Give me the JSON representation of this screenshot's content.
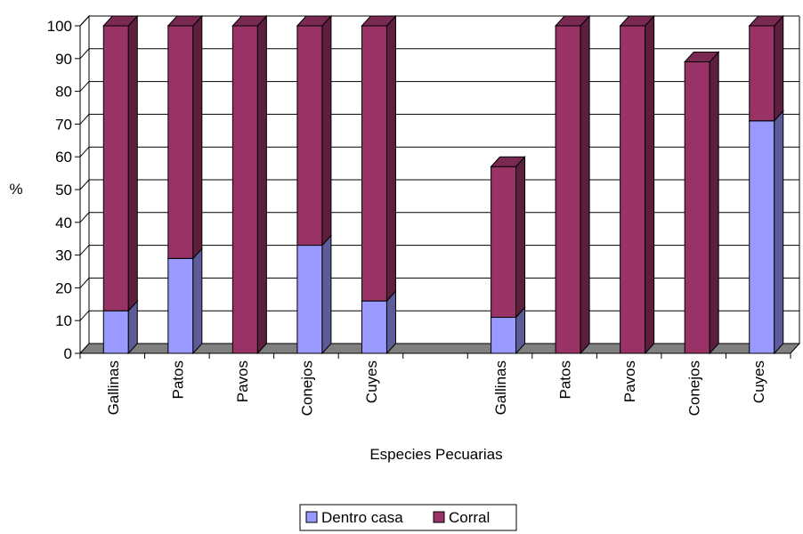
{
  "chart_data": {
    "type": "bar",
    "stacked": true,
    "three_d": true,
    "xlabel": "Especies Pecuarias",
    "ylabel": "%",
    "ylim": [
      0,
      100
    ],
    "y_ticks": [
      0,
      10,
      20,
      30,
      40,
      50,
      60,
      70,
      80,
      90,
      100
    ],
    "grid": true,
    "legend_position": "bottom",
    "groups": [
      {
        "categories": [
          "Gallinas",
          "Patos",
          "Pavos",
          "Conejos",
          "Cuyes"
        ]
      },
      {
        "categories": [
          "Gallinas",
          "Patos",
          "Pavos",
          "Conejos",
          "Cuyes"
        ]
      }
    ],
    "series": [
      {
        "name": "Dentro casa",
        "color": "#9999ff",
        "side_color": "#5c5c99",
        "top_color": "#7a7acc",
        "values": [
          [
            13,
            29,
            0,
            33,
            16
          ],
          [
            11,
            0,
            0,
            0,
            71
          ]
        ]
      },
      {
        "name": "Corral",
        "color": "#993366",
        "side_color": "#5c1f3d",
        "top_color": "#7a2952",
        "values": [
          [
            87,
            71,
            100,
            67,
            84
          ],
          [
            46,
            100,
            100,
            89,
            29
          ]
        ]
      }
    ],
    "floor_color": "#808080"
  }
}
